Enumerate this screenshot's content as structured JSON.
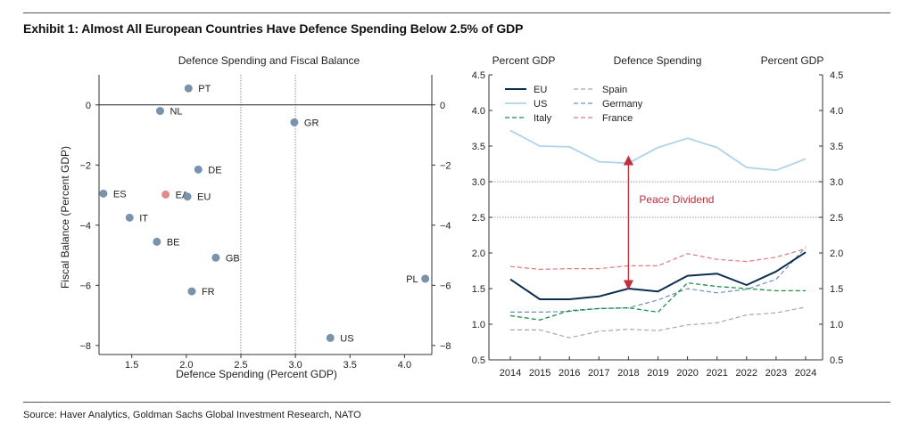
{
  "exhibit_title": "Exhibit 1: Almost All European Countries Have Defence Spending Below 2.5% of GDP",
  "source": "Source: Haver Analytics, Goldman Sachs Global Investment Research, NATO",
  "chart_data": [
    {
      "type": "scatter",
      "title": "Defence Spending and Fiscal Balance",
      "xlabel": "Defence Spending (Percent GDP)",
      "ylabel": "Fiscal Balance (Percent GDP)",
      "xlim": [
        1.2,
        4.25
      ],
      "ylim": [
        -8.3,
        1.0
      ],
      "xticks": [
        1.5,
        2.0,
        2.5,
        3.0,
        3.5,
        4.0
      ],
      "xtick_labels": [
        "1.5",
        "2.0",
        "2.5",
        "3.0",
        "3.5",
        "4.0"
      ],
      "yticks": [
        0,
        -2,
        -4,
        -6,
        -8
      ],
      "ytick_labels": [
        "0",
        "−2",
        "−4",
        "−6",
        "−8"
      ],
      "reference_lines": {
        "x_dotted": [
          2.5,
          3.0
        ],
        "y_solid": 0
      },
      "point_color": "#7a93ad",
      "highlight_color": "#e08a8a",
      "points": [
        {
          "label": "PT",
          "x": 2.02,
          "y": 0.55
        },
        {
          "label": "NL",
          "x": 1.76,
          "y": -0.2
        },
        {
          "label": "GR",
          "x": 2.99,
          "y": -0.58
        },
        {
          "label": "DE",
          "x": 2.11,
          "y": -2.15
        },
        {
          "label": "ES",
          "x": 1.24,
          "y": -2.95
        },
        {
          "label": "EA",
          "x": 1.81,
          "y": -2.98,
          "highlight": true
        },
        {
          "label": "EU",
          "x": 2.01,
          "y": -3.05
        },
        {
          "label": "IT",
          "x": 1.48,
          "y": -3.75
        },
        {
          "label": "BE",
          "x": 1.73,
          "y": -4.55
        },
        {
          "label": "GB",
          "x": 2.27,
          "y": -5.08
        },
        {
          "label": "PL",
          "x": 4.19,
          "y": -5.78
        },
        {
          "label": "FR",
          "x": 2.05,
          "y": -6.2
        },
        {
          "label": "US",
          "x": 3.32,
          "y": -7.75
        }
      ]
    },
    {
      "type": "line",
      "title": "Defence Spending",
      "left_axis_label": "Percent GDP",
      "right_axis_label": "Percent GDP",
      "x": [
        "2014",
        "2015",
        "2016",
        "2017",
        "2018",
        "2019",
        "2020",
        "2021",
        "2022",
        "2023",
        "2024"
      ],
      "ylim": [
        0.5,
        4.5
      ],
      "yticks": [
        "0.5",
        "1.0",
        "1.5",
        "2.0",
        "2.5",
        "3.0",
        "3.5",
        "4.0",
        "4.5"
      ],
      "reference_lines": [
        2.5,
        3.0
      ],
      "annotation": {
        "text": "Peace Dividend",
        "x": "2018",
        "from": 3.3,
        "to": 1.55,
        "color": "#c0303a"
      },
      "series": [
        {
          "name": "EU",
          "color": "#0b2e4f",
          "dash": "solid",
          "width": 2,
          "values": [
            1.63,
            1.35,
            1.35,
            1.39,
            1.5,
            1.46,
            1.68,
            1.71,
            1.55,
            1.74,
            2.01
          ]
        },
        {
          "name": "US",
          "color": "#aed3ea",
          "dash": "solid",
          "width": 1.8,
          "values": [
            3.72,
            3.5,
            3.49,
            3.28,
            3.26,
            3.48,
            3.61,
            3.48,
            3.2,
            3.16,
            3.32
          ]
        },
        {
          "name": "Italy",
          "color": "#1f8a4a",
          "dash": "dashed",
          "width": 1.3,
          "values": [
            1.12,
            1.06,
            1.19,
            1.22,
            1.23,
            1.17,
            1.58,
            1.53,
            1.5,
            1.47,
            1.47
          ]
        },
        {
          "name": "Spain",
          "color": "#a8a8a8",
          "dash": "dashed",
          "width": 1.2,
          "values": [
            0.92,
            0.92,
            0.81,
            0.9,
            0.93,
            0.91,
            0.99,
            1.02,
            1.13,
            1.16,
            1.24
          ]
        },
        {
          "name": "Germany",
          "color": "#6d8fb4",
          "dash": "dashed",
          "width": 1.2,
          "values": [
            1.17,
            1.17,
            1.18,
            1.22,
            1.23,
            1.34,
            1.5,
            1.44,
            1.49,
            1.63,
            2.08
          ]
        },
        {
          "name": "France",
          "color": "#e07a7a",
          "dash": "dashed",
          "width": 1.2,
          "values": [
            1.81,
            1.77,
            1.78,
            1.78,
            1.82,
            1.82,
            1.99,
            1.91,
            1.88,
            1.94,
            2.06
          ]
        }
      ]
    }
  ]
}
